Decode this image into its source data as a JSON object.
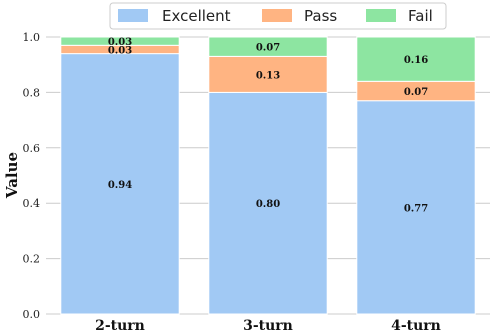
{
  "chart_data": {
    "type": "bar",
    "stacked": true,
    "categories": [
      "2-turn",
      "3-turn",
      "4-turn"
    ],
    "series": [
      {
        "name": "Excellent",
        "values": [
          0.94,
          0.8,
          0.77
        ],
        "color": "#a1c9f4"
      },
      {
        "name": "Pass",
        "values": [
          0.03,
          0.13,
          0.07
        ],
        "color": "#ffb482"
      },
      {
        "name": "Fail",
        "values": [
          0.03,
          0.07,
          0.16
        ],
        "color": "#8de5a1"
      }
    ],
    "data_labels": [
      [
        "0.94",
        "0.80",
        "0.77"
      ],
      [
        "0.03",
        "0.13",
        "0.07"
      ],
      [
        "0.03",
        "0.07",
        "0.16"
      ]
    ],
    "ylabel": "Value",
    "ylim": [
      0,
      1.0
    ],
    "yticks": [
      "0.0",
      "0.2",
      "0.4",
      "0.6",
      "0.8",
      "1.0"
    ],
    "ytick_values": [
      0,
      0.2,
      0.4,
      0.6,
      0.8,
      1.0
    ],
    "grid": true,
    "legend_position": "top-center"
  }
}
